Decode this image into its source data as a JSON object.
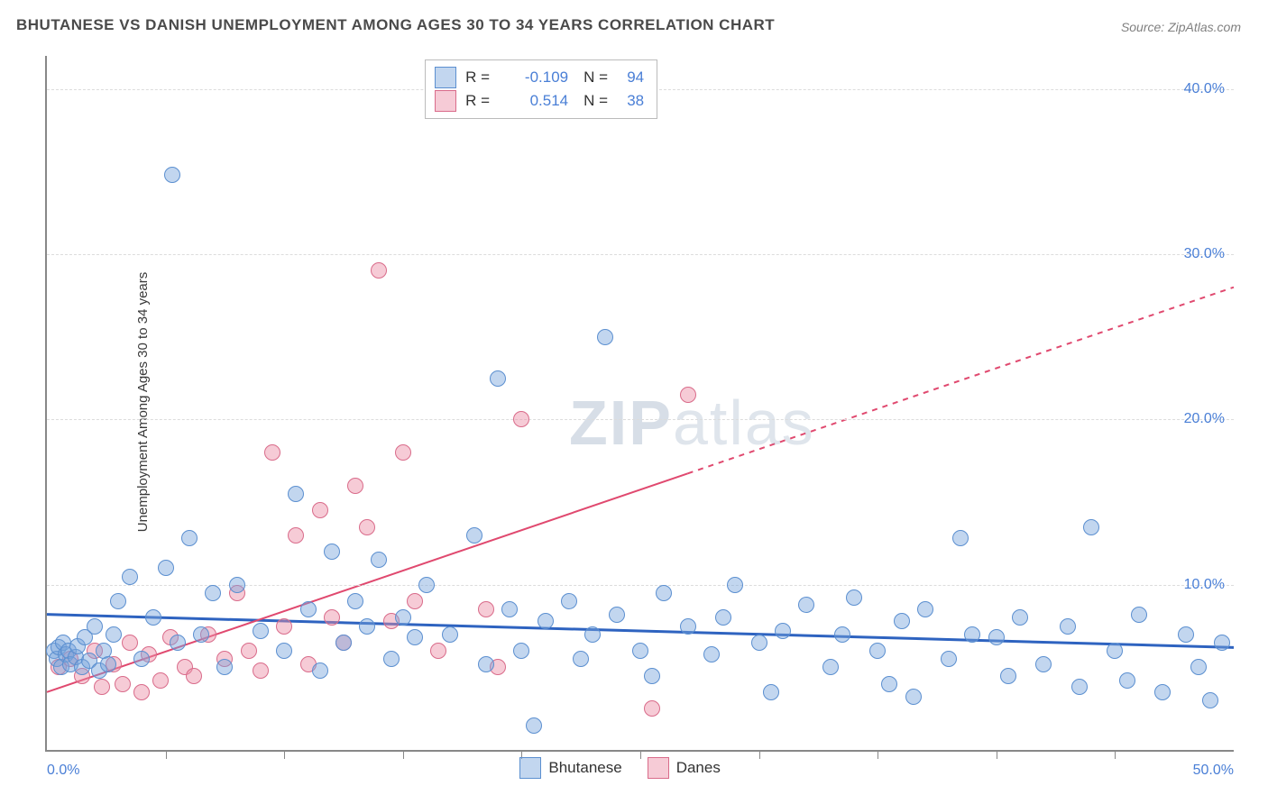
{
  "title": "BHUTANESE VS DANISH UNEMPLOYMENT AMONG AGES 30 TO 34 YEARS CORRELATION CHART",
  "source_label": "Source: ZipAtlas.com",
  "yaxis_label": "Unemployment Among Ages 30 to 34 years",
  "watermark": {
    "zip": "ZIP",
    "atlas": "atlas"
  },
  "chart": {
    "type": "scatter",
    "xlim": [
      0,
      50
    ],
    "ylim": [
      0,
      42
    ],
    "xtick_positions": [
      5,
      10,
      15,
      20,
      25,
      30,
      35,
      40,
      45
    ],
    "xtick_labels": {
      "0": "0.0%",
      "50": "50.0%"
    },
    "ytick_positions": [
      10,
      20,
      30,
      40
    ],
    "ytick_labels": {
      "10": "10.0%",
      "20": "20.0%",
      "30": "30.0%",
      "40": "40.0%"
    },
    "grid_color": "#dcdcdc",
    "background_color": "#ffffff",
    "axis_color": "#888888",
    "label_color": "#4a7fd6",
    "marker_radius": 8,
    "series": {
      "bhutanese": {
        "label": "Bhutanese",
        "fill": "rgba(120,165,220,0.45)",
        "stroke": "#5b8fd0",
        "trend_color": "#2e63c0",
        "trend_width": 3,
        "trend": {
          "x1": 0,
          "y1": 8.2,
          "x2": 50,
          "y2": 6.2,
          "dash_from_x": null
        },
        "R": "-0.109",
        "N": "94",
        "points": [
          [
            0.3,
            6.0
          ],
          [
            0.4,
            5.5
          ],
          [
            0.5,
            6.2
          ],
          [
            0.6,
            5.0
          ],
          [
            0.7,
            6.5
          ],
          [
            0.8,
            5.8
          ],
          [
            0.9,
            6.0
          ],
          [
            1.0,
            5.2
          ],
          [
            1.2,
            5.6
          ],
          [
            1.3,
            6.3
          ],
          [
            1.5,
            5.0
          ],
          [
            1.6,
            6.8
          ],
          [
            1.8,
            5.4
          ],
          [
            2.0,
            7.5
          ],
          [
            2.2,
            4.8
          ],
          [
            2.4,
            6.0
          ],
          [
            2.6,
            5.2
          ],
          [
            2.8,
            7.0
          ],
          [
            3.0,
            9.0
          ],
          [
            3.5,
            10.5
          ],
          [
            4.0,
            5.5
          ],
          [
            4.5,
            8.0
          ],
          [
            5.0,
            11.0
          ],
          [
            5.3,
            34.8
          ],
          [
            5.5,
            6.5
          ],
          [
            6.0,
            12.8
          ],
          [
            6.5,
            7.0
          ],
          [
            7.0,
            9.5
          ],
          [
            7.5,
            5.0
          ],
          [
            8.0,
            10.0
          ],
          [
            9.0,
            7.2
          ],
          [
            10.0,
            6.0
          ],
          [
            10.5,
            15.5
          ],
          [
            11.0,
            8.5
          ],
          [
            11.5,
            4.8
          ],
          [
            12.0,
            12.0
          ],
          [
            12.5,
            6.5
          ],
          [
            13.0,
            9.0
          ],
          [
            13.5,
            7.5
          ],
          [
            14.0,
            11.5
          ],
          [
            14.5,
            5.5
          ],
          [
            15.0,
            8.0
          ],
          [
            15.5,
            6.8
          ],
          [
            16.0,
            10.0
          ],
          [
            17.0,
            7.0
          ],
          [
            18.0,
            13.0
          ],
          [
            18.5,
            5.2
          ],
          [
            19.0,
            22.5
          ],
          [
            19.5,
            8.5
          ],
          [
            20.0,
            6.0
          ],
          [
            20.5,
            1.5
          ],
          [
            21.0,
            7.8
          ],
          [
            22.0,
            9.0
          ],
          [
            22.5,
            5.5
          ],
          [
            23.0,
            7.0
          ],
          [
            23.5,
            25.0
          ],
          [
            24.0,
            8.2
          ],
          [
            25.0,
            6.0
          ],
          [
            25.5,
            4.5
          ],
          [
            26.0,
            9.5
          ],
          [
            27.0,
            7.5
          ],
          [
            28.0,
            5.8
          ],
          [
            28.5,
            8.0
          ],
          [
            29.0,
            10.0
          ],
          [
            30.0,
            6.5
          ],
          [
            30.5,
            3.5
          ],
          [
            31.0,
            7.2
          ],
          [
            32.0,
            8.8
          ],
          [
            33.0,
            5.0
          ],
          [
            33.5,
            7.0
          ],
          [
            34.0,
            9.2
          ],
          [
            35.0,
            6.0
          ],
          [
            35.5,
            4.0
          ],
          [
            36.0,
            7.8
          ],
          [
            36.5,
            3.2
          ],
          [
            37.0,
            8.5
          ],
          [
            38.0,
            5.5
          ],
          [
            38.5,
            12.8
          ],
          [
            39.0,
            7.0
          ],
          [
            40.0,
            6.8
          ],
          [
            40.5,
            4.5
          ],
          [
            41.0,
            8.0
          ],
          [
            42.0,
            5.2
          ],
          [
            43.0,
            7.5
          ],
          [
            43.5,
            3.8
          ],
          [
            44.0,
            13.5
          ],
          [
            45.0,
            6.0
          ],
          [
            45.5,
            4.2
          ],
          [
            46.0,
            8.2
          ],
          [
            47.0,
            3.5
          ],
          [
            48.0,
            7.0
          ],
          [
            48.5,
            5.0
          ],
          [
            49.0,
            3.0
          ],
          [
            49.5,
            6.5
          ]
        ]
      },
      "danes": {
        "label": "Danes",
        "fill": "rgba(235,140,165,0.45)",
        "stroke": "#d96b8a",
        "trend_color": "#e0496f",
        "trend_width": 2,
        "trend": {
          "x1": 0,
          "y1": 3.5,
          "x2": 50,
          "y2": 28.0,
          "dash_from_x": 27
        },
        "R": "0.514",
        "N": "38",
        "points": [
          [
            0.5,
            5.0
          ],
          [
            1.0,
            5.5
          ],
          [
            1.5,
            4.5
          ],
          [
            2.0,
            6.0
          ],
          [
            2.3,
            3.8
          ],
          [
            2.8,
            5.2
          ],
          [
            3.2,
            4.0
          ],
          [
            3.5,
            6.5
          ],
          [
            4.0,
            3.5
          ],
          [
            4.3,
            5.8
          ],
          [
            4.8,
            4.2
          ],
          [
            5.2,
            6.8
          ],
          [
            5.8,
            5.0
          ],
          [
            6.2,
            4.5
          ],
          [
            6.8,
            7.0
          ],
          [
            7.5,
            5.5
          ],
          [
            8.0,
            9.5
          ],
          [
            8.5,
            6.0
          ],
          [
            9.0,
            4.8
          ],
          [
            9.5,
            18.0
          ],
          [
            10.0,
            7.5
          ],
          [
            10.5,
            13.0
          ],
          [
            11.0,
            5.2
          ],
          [
            11.5,
            14.5
          ],
          [
            12.0,
            8.0
          ],
          [
            12.5,
            6.5
          ],
          [
            13.0,
            16.0
          ],
          [
            13.5,
            13.5
          ],
          [
            14.0,
            29.0
          ],
          [
            14.5,
            7.8
          ],
          [
            15.0,
            18.0
          ],
          [
            15.5,
            9.0
          ],
          [
            16.5,
            6.0
          ],
          [
            18.5,
            8.5
          ],
          [
            19.0,
            5.0
          ],
          [
            20.0,
            20.0
          ],
          [
            25.5,
            2.5
          ],
          [
            27.0,
            21.5
          ]
        ]
      }
    }
  },
  "legend_top": {
    "rows": [
      {
        "swatch_fill": "rgba(120,165,220,0.45)",
        "swatch_stroke": "#5b8fd0",
        "r_label": "R =",
        "r_value": "-0.109",
        "n_label": "N =",
        "n_value": "94"
      },
      {
        "swatch_fill": "rgba(235,140,165,0.45)",
        "swatch_stroke": "#d96b8a",
        "r_label": "R =",
        "r_value": "0.514",
        "n_label": "N =",
        "n_value": "38"
      }
    ]
  },
  "legend_bottom": {
    "items": [
      {
        "swatch_fill": "rgba(120,165,220,0.45)",
        "swatch_stroke": "#5b8fd0",
        "label": "Bhutanese"
      },
      {
        "swatch_fill": "rgba(235,140,165,0.45)",
        "swatch_stroke": "#d96b8a",
        "label": "Danes"
      }
    ]
  }
}
